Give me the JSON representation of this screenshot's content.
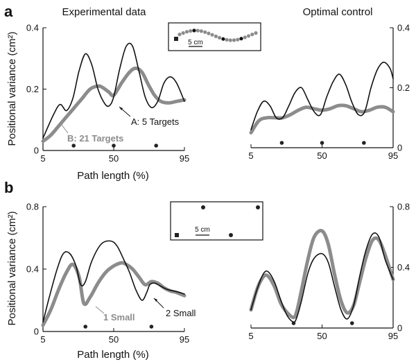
{
  "figure": {
    "panel_a_label": "a",
    "panel_b_label": "b",
    "col_left_title": "Experimental data",
    "col_right_title": "Optimal control",
    "ylabel": "Positional variance (cm²)",
    "xlabel": "Path length (%)",
    "x_ticks": [
      "5",
      "50",
      "95"
    ],
    "scale_bar_label": "5 cm"
  },
  "chart_data": [
    {
      "type": "line",
      "id": "a-left",
      "title": "Experimental data",
      "xlabel": "Path length (%)",
      "ylabel": "Positional variance (cm²)",
      "xlim": [
        5,
        95
      ],
      "ylim": [
        0,
        0.4
      ],
      "yticks": [
        "0",
        "0.2",
        "0.4"
      ],
      "axis_side": "left",
      "series": [
        {
          "name": "A: 5 Targets",
          "color": "#111111",
          "width": 1.6,
          "x": [
            5,
            12,
            16,
            20,
            24,
            28,
            32,
            36,
            40,
            44,
            47,
            50,
            54,
            58,
            62,
            66,
            70,
            74,
            78,
            82,
            86,
            90,
            95
          ],
          "y": [
            0.04,
            0.12,
            0.15,
            0.13,
            0.17,
            0.26,
            0.315,
            0.28,
            0.2,
            0.155,
            0.145,
            0.175,
            0.27,
            0.34,
            0.34,
            0.26,
            0.175,
            0.14,
            0.16,
            0.22,
            0.24,
            0.22,
            0.16
          ]
        },
        {
          "name": "B: 21 Targets",
          "color": "#8c8c8c",
          "width": 5,
          "x": [
            5,
            10,
            15,
            20,
            25,
            30,
            35,
            40,
            43,
            47,
            50,
            55,
            60,
            64,
            68,
            72,
            76,
            80,
            85,
            90,
            95
          ],
          "y": [
            0.03,
            0.05,
            0.08,
            0.11,
            0.14,
            0.17,
            0.2,
            0.21,
            0.205,
            0.19,
            0.18,
            0.22,
            0.255,
            0.268,
            0.255,
            0.215,
            0.18,
            0.16,
            0.155,
            0.16,
            0.165
          ]
        }
      ],
      "markers_x": [
        24.5,
        50,
        77
      ],
      "annotations": [
        {
          "text": "A: 5 Targets",
          "color": "#111111",
          "bold": false
        },
        {
          "text": "B: 21 Targets",
          "color": "#8c8c8c",
          "bold": true
        }
      ]
    },
    {
      "type": "line",
      "id": "a-right",
      "title": "Optimal control",
      "xlabel": "",
      "ylabel": "",
      "xlim": [
        5,
        95
      ],
      "ylim": [
        0,
        0.4
      ],
      "yticks": [
        "0",
        "0.2",
        "0.4"
      ],
      "axis_side": "right",
      "series": [
        {
          "name": "A: 5 Targets",
          "color": "#111111",
          "width": 1.6,
          "x": [
            5,
            9,
            13,
            17,
            21,
            25,
            29,
            33,
            37,
            41,
            45,
            49,
            53,
            57,
            61,
            65,
            69,
            73,
            77,
            81,
            85,
            89,
            93,
            95
          ],
          "y": [
            0.06,
            0.12,
            0.155,
            0.14,
            0.1,
            0.1,
            0.14,
            0.185,
            0.2,
            0.16,
            0.12,
            0.11,
            0.17,
            0.22,
            0.245,
            0.21,
            0.15,
            0.11,
            0.12,
            0.2,
            0.26,
            0.285,
            0.265,
            0.23
          ]
        },
        {
          "name": "B: 21 Targets",
          "color": "#8c8c8c",
          "width": 5,
          "x": [
            5,
            10,
            15,
            20,
            25,
            30,
            35,
            40,
            45,
            50,
            55,
            60,
            65,
            70,
            75,
            80,
            85,
            90,
            95
          ],
          "y": [
            0.05,
            0.09,
            0.1,
            0.1,
            0.1,
            0.11,
            0.125,
            0.135,
            0.13,
            0.125,
            0.13,
            0.14,
            0.14,
            0.13,
            0.12,
            0.125,
            0.135,
            0.135,
            0.12
          ]
        }
      ],
      "markers_x": [
        24.5,
        50,
        76.5
      ]
    },
    {
      "type": "line",
      "id": "b-left",
      "title": "",
      "xlabel": "Path length (%)",
      "ylabel": "Positional variance (cm²)",
      "xlim": [
        5,
        95
      ],
      "ylim": [
        0,
        0.8
      ],
      "yticks": [
        "0",
        "0.4",
        "0.8"
      ],
      "axis_side": "left",
      "series": [
        {
          "name": "2 Small",
          "color": "#111111",
          "width": 1.6,
          "x": [
            5,
            9,
            14,
            18,
            22,
            26,
            29,
            32,
            36,
            42,
            48,
            52,
            56,
            60,
            64,
            68,
            71,
            73,
            76,
            80,
            84,
            88,
            92,
            95
          ],
          "y": [
            0.06,
            0.22,
            0.4,
            0.5,
            0.5,
            0.42,
            0.3,
            0.32,
            0.45,
            0.56,
            0.58,
            0.55,
            0.47,
            0.38,
            0.27,
            0.2,
            0.25,
            0.3,
            0.31,
            0.29,
            0.27,
            0.26,
            0.25,
            0.24
          ]
        },
        {
          "name": "1 Small",
          "color": "#8c8c8c",
          "width": 5,
          "x": [
            5,
            10,
            15,
            20,
            24,
            28,
            31,
            35,
            40,
            45,
            50,
            55,
            58,
            62,
            66,
            70,
            74,
            78,
            82,
            86,
            90,
            95
          ],
          "y": [
            0.04,
            0.14,
            0.27,
            0.38,
            0.43,
            0.35,
            0.18,
            0.22,
            0.31,
            0.38,
            0.42,
            0.44,
            0.43,
            0.4,
            0.35,
            0.3,
            0.32,
            0.31,
            0.28,
            0.26,
            0.25,
            0.23
          ]
        }
      ],
      "markers_x": [
        32,
        74
      ],
      "annotations": [
        {
          "text": "2 Small",
          "color": "#111111",
          "bold": false
        },
        {
          "text": "1 Small",
          "color": "#8c8c8c",
          "bold": true
        }
      ]
    },
    {
      "type": "line",
      "id": "b-right",
      "title": "",
      "xlabel": "Path length (%)",
      "ylabel": "",
      "xlim": [
        5,
        95
      ],
      "ylim": [
        0,
        0.8
      ],
      "yticks": [
        "0",
        "0.4",
        "0.8"
      ],
      "axis_side": "right",
      "series": [
        {
          "name": "2 Small",
          "color": "#111111",
          "width": 1.6,
          "x": [
            5,
            9,
            13,
            16,
            20,
            24,
            28,
            32,
            34,
            37,
            41,
            45,
            50,
            54,
            58,
            62,
            66,
            70,
            74,
            78,
            82,
            86,
            90,
            95
          ],
          "y": [
            0.12,
            0.26,
            0.36,
            0.37,
            0.3,
            0.18,
            0.08,
            0.04,
            0.07,
            0.18,
            0.36,
            0.46,
            0.49,
            0.43,
            0.27,
            0.12,
            0.06,
            0.15,
            0.35,
            0.52,
            0.62,
            0.6,
            0.45,
            0.32
          ]
        },
        {
          "name": "1 Small",
          "color": "#8c8c8c",
          "width": 5,
          "x": [
            5,
            9,
            13,
            16,
            20,
            24,
            28,
            32,
            34,
            37,
            41,
            45,
            50,
            54,
            58,
            62,
            66,
            70,
            74,
            78,
            82,
            86,
            90,
            95
          ],
          "y": [
            0.12,
            0.26,
            0.34,
            0.34,
            0.27,
            0.16,
            0.1,
            0.07,
            0.11,
            0.25,
            0.45,
            0.6,
            0.64,
            0.55,
            0.35,
            0.18,
            0.1,
            0.15,
            0.31,
            0.47,
            0.58,
            0.58,
            0.48,
            0.32
          ]
        }
      ],
      "markers_x": [
        32,
        69
      ]
    }
  ]
}
